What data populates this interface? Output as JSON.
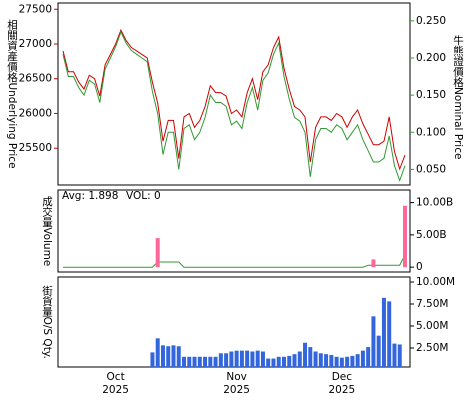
{
  "chart_data": [
    {
      "type": "line",
      "ylabel": "相關資產價格Underlying Price",
      "y2label": "牛熊證價格Nominal Price",
      "ylim": [
        24970,
        27590
      ],
      "yticks": [
        25500,
        26000,
        26500,
        27000,
        27500
      ],
      "ycolor": "#cc0000",
      "y2lim": [
        0.029,
        0.274
      ],
      "y2color": "#339933",
      "y2ticks": [
        {
          "value": 0.05,
          "label": "0.050"
        },
        {
          "value": 0.1,
          "label": "0.100"
        },
        {
          "value": 0.15,
          "label": "0.150"
        },
        {
          "value": 0.2,
          "label": "0.200"
        },
        {
          "value": 0.25,
          "label": "0.250"
        }
      ],
      "series": [
        {
          "color": "#cc0000",
          "values": [
            26900,
            26600,
            26600,
            26450,
            26350,
            26550,
            26500,
            26250,
            26700,
            26850,
            27000,
            27200,
            27050,
            26950,
            26900,
            26850,
            26800,
            26450,
            26150,
            25600,
            25900,
            25900,
            25350,
            25950,
            26000,
            25800,
            25900,
            26100,
            26400,
            26300,
            26300,
            26250,
            26000,
            26050,
            25950,
            26300,
            26500,
            26200,
            26600,
            26700,
            26950,
            27100,
            26650,
            26350,
            26100,
            26050,
            25950,
            25300,
            25800,
            25950,
            25950,
            25900,
            26000,
            25950,
            25800,
            25950,
            26050,
            25850,
            25700,
            25550,
            25550,
            25600,
            25950,
            25450,
            25200,
            25400
          ]
        },
        {
          "color": "#339933",
          "axis": "y2",
          "values": [
            0.205,
            0.175,
            0.175,
            0.16,
            0.15,
            0.17,
            0.165,
            0.14,
            0.185,
            0.2,
            0.215,
            0.235,
            0.22,
            0.21,
            0.205,
            0.2,
            0.195,
            0.155,
            0.125,
            0.07,
            0.1,
            0.1,
            0.05,
            0.105,
            0.11,
            0.09,
            0.1,
            0.12,
            0.15,
            0.14,
            0.14,
            0.135,
            0.11,
            0.115,
            0.105,
            0.14,
            0.16,
            0.13,
            0.17,
            0.18,
            0.205,
            0.22,
            0.175,
            0.145,
            0.12,
            0.115,
            0.1,
            0.04,
            0.09,
            0.105,
            0.105,
            0.1,
            0.11,
            0.105,
            0.09,
            0.1,
            0.11,
            0.09,
            0.075,
            0.06,
            0.06,
            0.065,
            0.095,
            0.055,
            0.035,
            0.055
          ]
        }
      ]
    },
    {
      "type": "bar",
      "ylabel": "成交量Volume",
      "ylim": [
        -0.75,
        11.95
      ],
      "yticks": [
        0,
        {
          "value": 5,
          "label": "5.00B"
        },
        {
          "value": 10,
          "label": "10.00B"
        }
      ],
      "series": [
        {
          "name": "Avg: 1.898",
          "color": "#339933",
          "mark": "line",
          "values": [
            0,
            0,
            0,
            0,
            0,
            0,
            0,
            0,
            0,
            0,
            0,
            0,
            0,
            0,
            0,
            0,
            0,
            0,
            0.8,
            0.8,
            0.8,
            0.8,
            0.8,
            0,
            0,
            0,
            0,
            0,
            0,
            0,
            0,
            0,
            0,
            0,
            0,
            0,
            0,
            0,
            0,
            0,
            0,
            0,
            0,
            0,
            0,
            0,
            0,
            0,
            0,
            0,
            0,
            0,
            0,
            0,
            0,
            0,
            0,
            0,
            0.3,
            0.3,
            0.3,
            0.3,
            0.3,
            0.3,
            0.3,
            1.9
          ]
        },
        {
          "name": "VOL: 0",
          "color": "#ff6699",
          "values": [
            0,
            0,
            0,
            0,
            0,
            0,
            0,
            0,
            0,
            0,
            0,
            0,
            0,
            0,
            0,
            0,
            0,
            0,
            4.5,
            0,
            0,
            0,
            0,
            0,
            0,
            0,
            0,
            0,
            0,
            0,
            0,
            0,
            0,
            0,
            0,
            0,
            0,
            0,
            0,
            0,
            0,
            0,
            0,
            0,
            0,
            0,
            0,
            0,
            0,
            0,
            0,
            0,
            0,
            0,
            0,
            0,
            0,
            0,
            0,
            1.2,
            0,
            0,
            0,
            0,
            0,
            9.5
          ]
        }
      ]
    },
    {
      "type": "bar",
      "ylabel": "街貨量O/S Qty.",
      "ylim": [
        0.34,
        10.57
      ],
      "yticks": [
        {
          "value": 2.5,
          "label": "2.50M"
        },
        {
          "value": 5,
          "label": "5.00M"
        },
        {
          "value": 7.5,
          "label": "7.50M"
        },
        {
          "value": 10,
          "label": "10.00M"
        }
      ],
      "categories": [
        null,
        null,
        null,
        null,
        null,
        null,
        null,
        null,
        null,
        null,
        "Oct 2025",
        null,
        null,
        null,
        null,
        null,
        null,
        null,
        null,
        null,
        null,
        null,
        null,
        null,
        null,
        null,
        null,
        null,
        null,
        null,
        null,
        null,
        null,
        "Nov 2025",
        null,
        null,
        null,
        null,
        null,
        null,
        null,
        null,
        null,
        null,
        null,
        null,
        null,
        null,
        null,
        null,
        null,
        null,
        null,
        "Dec 2025",
        null,
        null,
        null,
        null,
        null,
        null,
        null,
        null,
        null,
        null,
        null,
        null
      ],
      "series": [
        {
          "color": "#3366dd",
          "values": [
            null,
            null,
            null,
            null,
            null,
            null,
            null,
            null,
            null,
            null,
            null,
            null,
            null,
            null,
            null,
            null,
            null,
            2.0,
            3.6,
            2.8,
            2.7,
            2.8,
            2.7,
            1.5,
            1.5,
            1.5,
            1.5,
            1.5,
            1.5,
            1.5,
            1.9,
            1.9,
            2.1,
            2.2,
            2.2,
            2.2,
            2.1,
            2.2,
            2.1,
            1.3,
            1.3,
            1.5,
            1.5,
            1.6,
            1.8,
            2.1,
            3.1,
            2.6,
            2.1,
            1.9,
            1.8,
            1.7,
            1.5,
            1.4,
            1.5,
            1.6,
            1.8,
            2.2,
            2.6,
            6.1,
            3.9,
            8.2,
            7.8,
            3.0,
            2.9,
            null
          ]
        }
      ]
    }
  ]
}
